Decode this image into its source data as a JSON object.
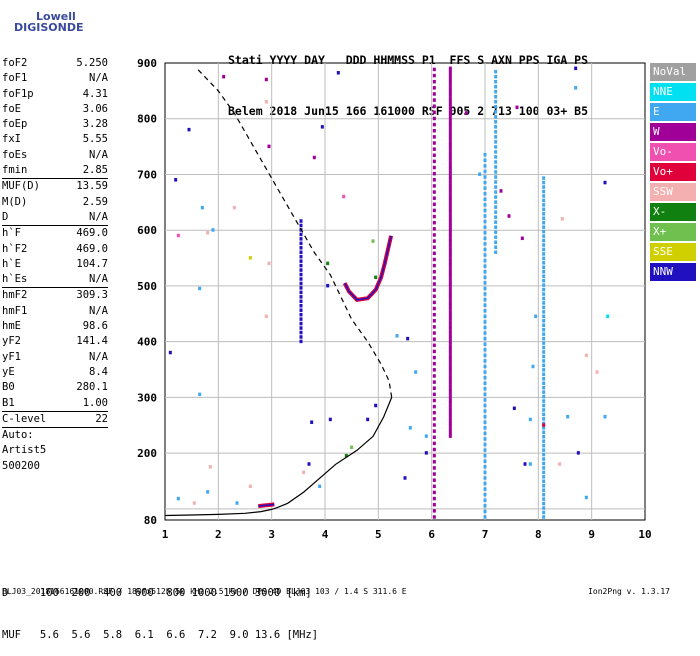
{
  "logo": {
    "line1": "Lowell",
    "line2": "DIGISONDE"
  },
  "header": {
    "line1": "Stati YYYY DAY   DDD HHMMSS P1  FFS S AXN PPS IGA PS",
    "line2": "Belem 2018 Jun15 166 161000 RSF 005 2 713 100 03+ B5"
  },
  "params": [
    {
      "n": "foF2",
      "v": "5.250"
    },
    {
      "n": "foF1",
      "v": "N/A"
    },
    {
      "n": "foF1p",
      "v": "4.31"
    },
    {
      "n": "foE",
      "v": "3.06"
    },
    {
      "n": "foEp",
      "v": "3.28"
    },
    {
      "n": "fxI",
      "v": "5.55"
    },
    {
      "n": "foEs",
      "v": "N/A"
    },
    {
      "n": "fmin",
      "v": "2.85"
    },
    {
      "sep": true
    },
    {
      "n": "MUF(D)",
      "v": "13.59"
    },
    {
      "n": "M(D)",
      "v": "2.59"
    },
    {
      "n": "D",
      "v": "N/A"
    },
    {
      "sep": true
    },
    {
      "n": "h`F",
      "v": "469.0"
    },
    {
      "n": "h`F2",
      "v": "469.0"
    },
    {
      "n": "h`E",
      "v": "104.7"
    },
    {
      "n": "h`Es",
      "v": "N/A"
    },
    {
      "sep": true
    },
    {
      "n": "hmF2",
      "v": "309.3"
    },
    {
      "n": "hmF1",
      "v": "N/A"
    },
    {
      "n": "hmE",
      "v": "98.6"
    },
    {
      "n": "yF2",
      "v": "141.4"
    },
    {
      "n": "yF1",
      "v": "N/A"
    },
    {
      "n": "yE",
      "v": "8.4"
    },
    {
      "n": "B0",
      "v": "280.1"
    },
    {
      "n": "B1",
      "v": "1.00"
    },
    {
      "sep": true
    },
    {
      "n": "C-level",
      "v": "22"
    },
    {
      "sep": true
    },
    {
      "n": "Auto:",
      "v": ""
    },
    {
      "n": "Artist5",
      "v": ""
    },
    {
      "n": "500200",
      "v": ""
    }
  ],
  "legend": [
    {
      "label": "NoVal",
      "color": "#a0a0a0"
    },
    {
      "label": "NNE",
      "color": "#00e0f0"
    },
    {
      "label": "E",
      "color": "#40a8f0"
    },
    {
      "label": "W",
      "color": "#a00098"
    },
    {
      "label": "Vo-",
      "color": "#f050b0"
    },
    {
      "label": "Vo+",
      "color": "#e0003a"
    },
    {
      "label": "SSW",
      "color": "#f4b0b0"
    },
    {
      "label": "X-",
      "color": "#108010"
    },
    {
      "label": "X+",
      "color": "#70c050"
    },
    {
      "label": "SSE",
      "color": "#d0d000"
    },
    {
      "label": "NNW",
      "color": "#2010c0"
    }
  ],
  "bottom": {
    "d_row": "D     100  200  400  600  800 1000 1500 3000 [km]",
    "muf_row": "MUF   5.6  5.6  5.8  6.1  6.6  7.2  9.0 13.6 [MHz]"
  },
  "footer": {
    "left": "BLJ03_2018166161000.RSF / 180fx512h 50 kHz 2.5 km / DPS-4D BLJ03 103 / 1.4 S 311.6 E",
    "right": "Ion2Png v. 1.3.17"
  },
  "chart_data": {
    "type": "scatter",
    "xlim": [
      1,
      10
    ],
    "ylim": [
      80,
      900
    ],
    "x_ticks": [
      1,
      2,
      3,
      4,
      5,
      6,
      7,
      8,
      9,
      10
    ],
    "y_ticks": [
      80,
      100,
      200,
      300,
      400,
      500,
      600,
      700,
      800,
      900
    ],
    "y_tick_labels": [
      "80",
      "",
      "200",
      "300",
      "400",
      "500",
      "600",
      "700",
      "800",
      "900"
    ],
    "grid": true,
    "profile_solid": [
      [
        1.0,
        88
      ],
      [
        1.5,
        89
      ],
      [
        2.0,
        90
      ],
      [
        2.5,
        92
      ],
      [
        2.8,
        95
      ],
      [
        3.0,
        99
      ],
      [
        3.1,
        102
      ],
      [
        3.3,
        110
      ],
      [
        3.6,
        130
      ],
      [
        3.9,
        155
      ],
      [
        4.2,
        180
      ],
      [
        4.6,
        205
      ],
      [
        4.9,
        230
      ],
      [
        5.1,
        265
      ],
      [
        5.25,
        300
      ]
    ],
    "profile_dashed": [
      [
        5.25,
        300
      ],
      [
        5.2,
        330
      ],
      [
        5.05,
        360
      ],
      [
        4.8,
        400
      ],
      [
        4.5,
        440
      ],
      [
        4.3,
        480
      ],
      [
        4.1,
        520
      ],
      [
        3.8,
        560
      ],
      [
        3.5,
        610
      ],
      [
        3.2,
        660
      ],
      [
        2.9,
        710
      ],
      [
        2.6,
        760
      ],
      [
        2.3,
        810
      ],
      [
        2.0,
        850
      ],
      [
        1.6,
        890
      ]
    ],
    "trace_f": [
      [
        4.37,
        505
      ],
      [
        4.45,
        490
      ],
      [
        4.6,
        475
      ],
      [
        4.8,
        478
      ],
      [
        4.95,
        493
      ],
      [
        5.05,
        515
      ],
      [
        5.12,
        540
      ],
      [
        5.18,
        565
      ],
      [
        5.24,
        590
      ]
    ],
    "trace_e": [
      [
        2.75,
        105
      ],
      [
        2.85,
        106
      ],
      [
        2.95,
        107
      ],
      [
        3.05,
        108
      ]
    ],
    "echo_columns": [
      {
        "x": 6.05,
        "y0": 85,
        "y1": 895,
        "color": "#a00098",
        "step": 11
      },
      {
        "x": 6.35,
        "y0": 230,
        "y1": 895,
        "color": "#a00098",
        "step": 6
      },
      {
        "x": 7.0,
        "y0": 85,
        "y1": 740,
        "color": "#40a8f0",
        "step": 10
      },
      {
        "x": 7.2,
        "y0": 560,
        "y1": 890,
        "color": "#40a8f0",
        "step": 9
      },
      {
        "x": 8.1,
        "y0": 85,
        "y1": 700,
        "color": "#40a8f0",
        "step": 8
      },
      {
        "x": 3.55,
        "y0": 400,
        "y1": 620,
        "color": "#2010c0",
        "step": 8
      }
    ],
    "points": [
      {
        "x": 1.2,
        "y": 690,
        "c": "#2010c0"
      },
      {
        "x": 1.25,
        "y": 590,
        "c": "#f050b0"
      },
      {
        "x": 1.45,
        "y": 780,
        "c": "#2010c0"
      },
      {
        "x": 1.7,
        "y": 640,
        "c": "#40a8f0"
      },
      {
        "x": 1.65,
        "y": 495,
        "c": "#40a8f0"
      },
      {
        "x": 1.65,
        "y": 305,
        "c": "#40a8f0"
      },
      {
        "x": 1.9,
        "y": 600,
        "c": "#40a8f0"
      },
      {
        "x": 1.1,
        "y": 380,
        "c": "#2010c0"
      },
      {
        "x": 2.1,
        "y": 875,
        "c": "#a00098"
      },
      {
        "x": 2.3,
        "y": 640,
        "c": "#f4b0b0"
      },
      {
        "x": 2.6,
        "y": 550,
        "c": "#d0d000"
      },
      {
        "x": 2.9,
        "y": 870,
        "c": "#a00098"
      },
      {
        "x": 2.9,
        "y": 830,
        "c": "#f4b0b0"
      },
      {
        "x": 2.95,
        "y": 750,
        "c": "#a00098"
      },
      {
        "x": 3.75,
        "y": 255,
        "c": "#2010c0"
      },
      {
        "x": 3.8,
        "y": 730,
        "c": "#a00098"
      },
      {
        "x": 3.95,
        "y": 785,
        "c": "#2010c0"
      },
      {
        "x": 4.25,
        "y": 882,
        "c": "#2010c0"
      },
      {
        "x": 4.35,
        "y": 660,
        "c": "#f050b0"
      },
      {
        "x": 4.4,
        "y": 195,
        "c": "#108010"
      },
      {
        "x": 4.5,
        "y": 210,
        "c": "#70c050"
      },
      {
        "x": 4.1,
        "y": 260,
        "c": "#2010c0"
      },
      {
        "x": 4.8,
        "y": 260,
        "c": "#2010c0"
      },
      {
        "x": 4.95,
        "y": 285,
        "c": "#2010c0"
      },
      {
        "x": 4.05,
        "y": 500,
        "c": "#2010c0"
      },
      {
        "x": 4.05,
        "y": 540,
        "c": "#108010"
      },
      {
        "x": 5.55,
        "y": 405,
        "c": "#2010c0"
      },
      {
        "x": 5.35,
        "y": 410,
        "c": "#40a8f0"
      },
      {
        "x": 5.5,
        "y": 155,
        "c": "#2010c0"
      },
      {
        "x": 5.9,
        "y": 230,
        "c": "#40a8f0"
      },
      {
        "x": 5.9,
        "y": 200,
        "c": "#2010c0"
      },
      {
        "x": 6.65,
        "y": 810,
        "c": "#a00098"
      },
      {
        "x": 6.9,
        "y": 700,
        "c": "#40a8f0"
      },
      {
        "x": 7.3,
        "y": 670,
        "c": "#a00098"
      },
      {
        "x": 7.45,
        "y": 625,
        "c": "#a00098"
      },
      {
        "x": 7.55,
        "y": 280,
        "c": "#2010c0"
      },
      {
        "x": 7.6,
        "y": 820,
        "c": "#a00098"
      },
      {
        "x": 7.7,
        "y": 585,
        "c": "#a00098"
      },
      {
        "x": 7.85,
        "y": 260,
        "c": "#40a8f0"
      },
      {
        "x": 7.85,
        "y": 180,
        "c": "#40a8f0"
      },
      {
        "x": 7.9,
        "y": 355,
        "c": "#40a8f0"
      },
      {
        "x": 7.95,
        "y": 445,
        "c": "#40a8f0"
      },
      {
        "x": 8.4,
        "y": 180,
        "c": "#f4b0b0"
      },
      {
        "x": 8.45,
        "y": 620,
        "c": "#f4b0b0"
      },
      {
        "x": 8.55,
        "y": 265,
        "c": "#40a8f0"
      },
      {
        "x": 8.7,
        "y": 890,
        "c": "#2010c0"
      },
      {
        "x": 8.7,
        "y": 855,
        "c": "#40a8f0"
      },
      {
        "x": 8.9,
        "y": 375,
        "c": "#f4b0b0"
      },
      {
        "x": 9.1,
        "y": 345,
        "c": "#f4b0b0"
      },
      {
        "x": 9.25,
        "y": 685,
        "c": "#2010c0"
      },
      {
        "x": 9.25,
        "y": 265,
        "c": "#40a8f0"
      },
      {
        "x": 9.3,
        "y": 445,
        "c": "#00e0f0"
      },
      {
        "x": 1.25,
        "y": 118,
        "c": "#40a8f0"
      },
      {
        "x": 1.55,
        "y": 110,
        "c": "#f4b0b0"
      },
      {
        "x": 1.8,
        "y": 130,
        "c": "#40a8f0"
      },
      {
        "x": 1.85,
        "y": 175,
        "c": "#f4b0b0"
      },
      {
        "x": 2.35,
        "y": 110,
        "c": "#40a8f0"
      },
      {
        "x": 2.6,
        "y": 140,
        "c": "#f4b0b0"
      },
      {
        "x": 3.6,
        "y": 165,
        "c": "#f4b0b0"
      },
      {
        "x": 3.7,
        "y": 180,
        "c": "#2010c0"
      },
      {
        "x": 3.9,
        "y": 140,
        "c": "#40a8f0"
      },
      {
        "x": 2.9,
        "y": 445,
        "c": "#f4b0b0"
      },
      {
        "x": 2.95,
        "y": 540,
        "c": "#f4b0b0"
      },
      {
        "x": 1.8,
        "y": 595,
        "c": "#f4b0b0"
      },
      {
        "x": 4.9,
        "y": 580,
        "c": "#70c050"
      },
      {
        "x": 4.95,
        "y": 515,
        "c": "#108010"
      },
      {
        "x": 8.9,
        "y": 120,
        "c": "#40a8f0"
      },
      {
        "x": 8.1,
        "y": 250,
        "c": "#e0003a"
      },
      {
        "x": 7.75,
        "y": 180,
        "c": "#2010c0"
      },
      {
        "x": 8.75,
        "y": 200,
        "c": "#2010c0"
      },
      {
        "x": 5.6,
        "y": 245,
        "c": "#40a8f0"
      },
      {
        "x": 5.7,
        "y": 345,
        "c": "#40a8f0"
      }
    ]
  }
}
